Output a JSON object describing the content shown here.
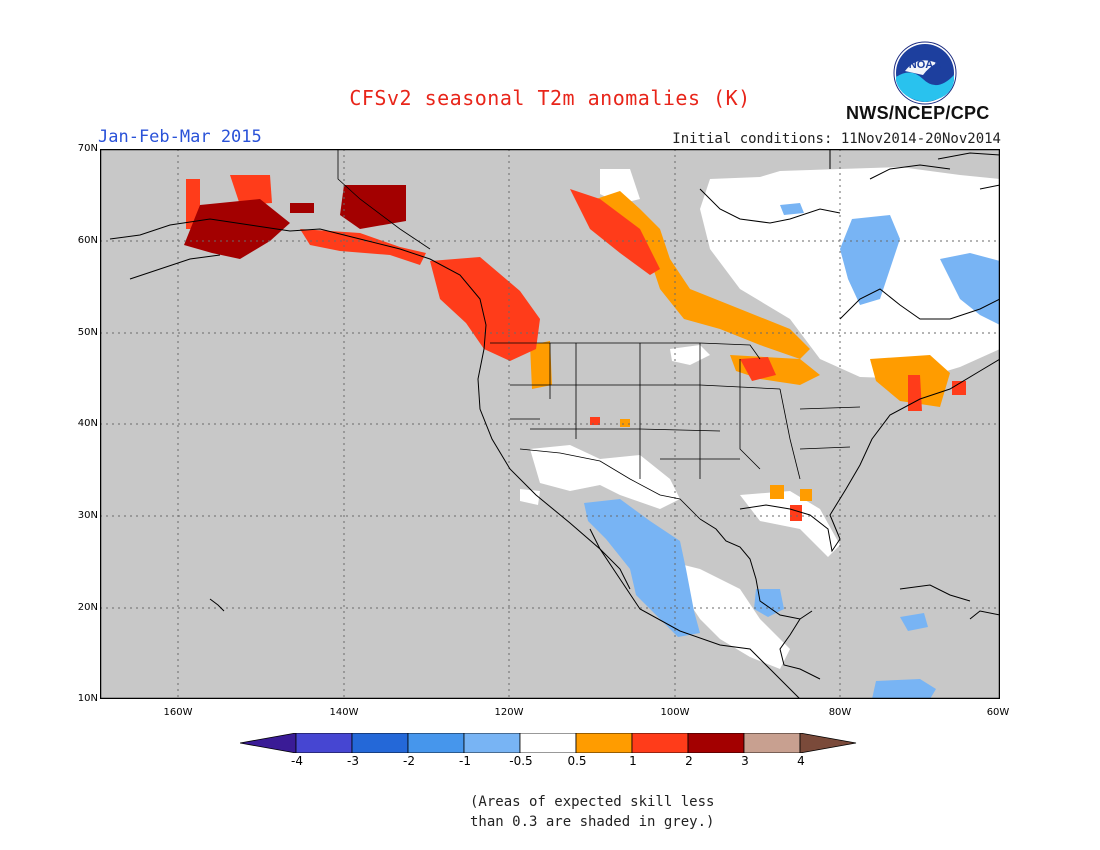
{
  "header": {
    "title": "CFSv2 seasonal T2m anomalies (K)",
    "period": "Jan-Feb-Mar 2015",
    "initial_conditions": "Initial conditions: 11Nov2014-20Nov2014",
    "agency": "NWS/NCEP/CPC",
    "logo_text": "NOAA"
  },
  "map": {
    "lat_labels": [
      "70N",
      "60N",
      "50N",
      "40N",
      "30N",
      "20N",
      "10N"
    ],
    "lon_labels": [
      "160W",
      "140W",
      "120W",
      "100W",
      "80W",
      "60W"
    ],
    "background_grey": "#c8c8c8"
  },
  "colorbar": {
    "labels": [
      "-4",
      "-3",
      "-2",
      "-1",
      "-0.5",
      "0.5",
      "1",
      "2",
      "3",
      "4"
    ],
    "colors": [
      "#3a1b96",
      "#4646d2",
      "#2468d8",
      "#4696ec",
      "#78b4f4",
      "#ffffff",
      "#ff9c00",
      "#ff3c1a",
      "#a30000",
      "#c8a090",
      "#7a4a3a"
    ]
  },
  "footnote": {
    "line1": "(Areas of expected skill less",
    "line2": "than 0.3 are shaded in grey.)"
  }
}
